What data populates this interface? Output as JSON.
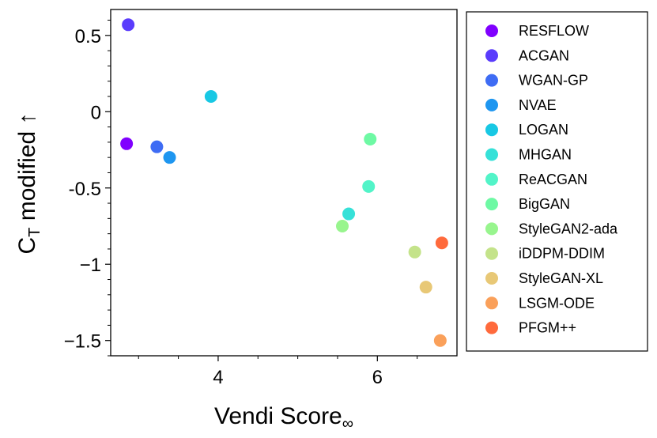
{
  "chart_data": {
    "type": "scatter",
    "title": "",
    "xlabel": {
      "main": "Vendi Score",
      "sub": "∞"
    },
    "ylabel": {
      "main": "C",
      "sub": "T",
      "rest": " modified  ↑"
    },
    "xlim": [
      2.65,
      7.0
    ],
    "ylim": [
      -1.6,
      0.67
    ],
    "xticks": [
      {
        "value": 4,
        "label": "4"
      },
      {
        "value": 6,
        "label": "6"
      }
    ],
    "yticks": [
      {
        "value": 0.5,
        "label": "0.5"
      },
      {
        "value": 0,
        "label": "0"
      },
      {
        "value": -0.5,
        "label": "-0.5"
      },
      {
        "value": -1,
        "label": "−1"
      },
      {
        "value": -1.5,
        "label": "−1.5"
      }
    ],
    "grid": false,
    "legend_position": "outside-right",
    "series": [
      {
        "name": "RESFLOW",
        "color": "#8000ff",
        "x": 2.85,
        "y": -0.21
      },
      {
        "name": "ACGAN",
        "color": "#5a3cfc",
        "x": 2.87,
        "y": 0.57
      },
      {
        "name": "WGAN-GP",
        "color": "#3e6cf4",
        "x": 3.23,
        "y": -0.23
      },
      {
        "name": "NVAE",
        "color": "#1e96f0",
        "x": 3.39,
        "y": -0.3
      },
      {
        "name": "LOGAN",
        "color": "#18c8e4",
        "x": 3.91,
        "y": 0.1
      },
      {
        "name": "MHGAN",
        "color": "#36e1d8",
        "x": 5.64,
        "y": -0.67
      },
      {
        "name": "ReACGAN",
        "color": "#52f4c8",
        "x": 5.89,
        "y": -0.49
      },
      {
        "name": "BigGAN",
        "color": "#6ef9a4",
        "x": 5.91,
        "y": -0.18
      },
      {
        "name": "StyleGAN2-ada",
        "color": "#98f58e",
        "x": 5.56,
        "y": -0.75
      },
      {
        "name": "iDDPM-DDIM",
        "color": "#c4e38a",
        "x": 6.47,
        "y": -0.92
      },
      {
        "name": "StyleGAN-XL",
        "color": "#e8c876",
        "x": 6.61,
        "y": -1.15
      },
      {
        "name": "LSGM-ODE",
        "color": "#faa05a",
        "x": 6.79,
        "y": -1.5
      },
      {
        "name": "PFGM++",
        "color": "#ff6a3c",
        "x": 6.81,
        "y": -0.86
      }
    ]
  }
}
